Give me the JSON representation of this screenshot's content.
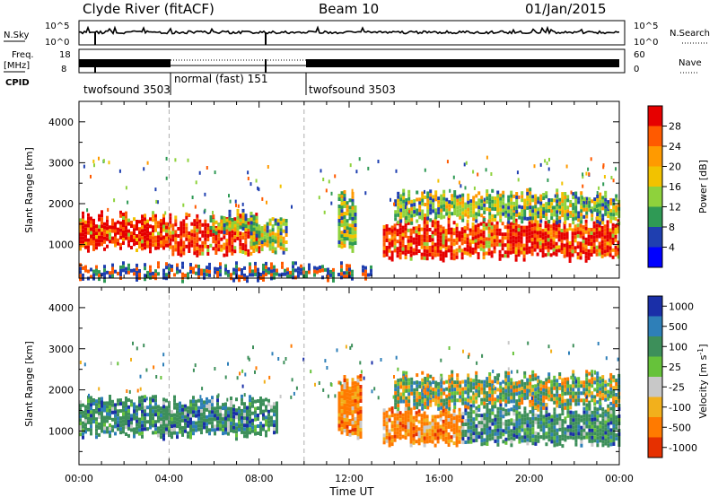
{
  "header": {
    "title": "Clyde River (fitACF)",
    "beam": "Beam 10",
    "date": "01/Jan/2015"
  },
  "noise_panel": {
    "left_label": "N.Sky",
    "right_label": "N.Search",
    "left_ticks": [
      "10^5",
      "10^0"
    ],
    "right_ticks": [
      "10^5",
      "10^0"
    ]
  },
  "freq_panel": {
    "left_label_1": "Freq.",
    "left_label_2": "[MHz]",
    "right_label": "Nave",
    "left_ticks": [
      "18",
      "8"
    ],
    "right_ticks": [
      "60",
      "0"
    ]
  },
  "cpid": {
    "label": "CPID",
    "segments": [
      {
        "label": "twofsound 3503",
        "start_hour": 0.0,
        "end_hour": 4.0
      },
      {
        "label": "normal (fast) 151",
        "start_hour": 4.0,
        "end_hour": 10.0
      },
      {
        "label": "twofsound 3503",
        "start_hour": 10.0,
        "end_hour": 24.0
      }
    ]
  },
  "chart_data": [
    {
      "type": "heatmap",
      "name": "power",
      "ylabel": "Slant Range [km]",
      "xlabel": "Time UT",
      "xlim": [
        0,
        24
      ],
      "ylim": [
        180,
        4500
      ],
      "yticks": [
        1000,
        2000,
        3000,
        4000
      ],
      "xticks": [
        "00:00",
        "04:00",
        "08:00",
        "12:00",
        "16:00",
        "20:00",
        "00:00"
      ],
      "colorbar": {
        "label": "Power [dB]",
        "ticks": [
          "28",
          "24",
          "20",
          "16",
          "12",
          "8",
          "4"
        ],
        "colors": [
          "#e60000",
          "#ff5a00",
          "#ff9a00",
          "#f2c200",
          "#8ed23c",
          "#2f9a55",
          "#1f3fb0",
          "#0000ff"
        ]
      },
      "regions": [
        {
          "t": [
            0.0,
            4.0
          ],
          "r": [
            900,
            1750
          ],
          "level": "high"
        },
        {
          "t": [
            4.0,
            8.0
          ],
          "r": [
            800,
            1700
          ],
          "level": "high"
        },
        {
          "t": [
            5.8,
            7.8
          ],
          "r": [
            1300,
            1800
          ],
          "level": "mid"
        },
        {
          "t": [
            7.6,
            9.2
          ],
          "r": [
            900,
            1650
          ],
          "level": "mid"
        },
        {
          "t": [
            11.5,
            12.3
          ],
          "r": [
            900,
            2300
          ],
          "level": "mid"
        },
        {
          "t": [
            13.5,
            24.0
          ],
          "r": [
            700,
            1600
          ],
          "level": "high"
        },
        {
          "t": [
            14.0,
            24.0
          ],
          "r": [
            1600,
            2300
          ],
          "level": "mid"
        },
        {
          "t": [
            0.0,
            13.0
          ],
          "r": [
            200,
            500
          ],
          "level": "low"
        }
      ]
    },
    {
      "type": "heatmap",
      "name": "velocity",
      "ylabel": "Slant Range [km]",
      "xlabel": "Time UT",
      "xlim": [
        0,
        24
      ],
      "ylim": [
        180,
        4500
      ],
      "yticks": [
        1000,
        2000,
        3000,
        4000
      ],
      "xticks": [
        "00:00",
        "04:00",
        "08:00",
        "12:00",
        "16:00",
        "20:00",
        "00:00"
      ],
      "colorbar": {
        "label": "Velocity [m s^-1]",
        "ticks": [
          "1000",
          "500",
          "100",
          "25",
          "-25",
          "-100",
          "-500",
          "-1000"
        ],
        "colors": [
          "#1a2fa8",
          "#2e7fb8",
          "#3d8f5a",
          "#66c23a",
          "#c8c8c8",
          "#f2b01c",
          "#ff7a00",
          "#e63000"
        ]
      },
      "regions": [
        {
          "t": [
            0.0,
            8.8
          ],
          "r": [
            900,
            1800
          ],
          "level": "pos"
        },
        {
          "t": [
            11.5,
            12.5
          ],
          "r": [
            900,
            2300
          ],
          "level": "neg"
        },
        {
          "t": [
            13.5,
            17.0
          ],
          "r": [
            700,
            1600
          ],
          "level": "neg"
        },
        {
          "t": [
            17.0,
            24.0
          ],
          "r": [
            700,
            1600
          ],
          "level": "pos"
        },
        {
          "t": [
            14.0,
            24.0
          ],
          "r": [
            1600,
            2400
          ],
          "level": "mix"
        }
      ]
    }
  ]
}
